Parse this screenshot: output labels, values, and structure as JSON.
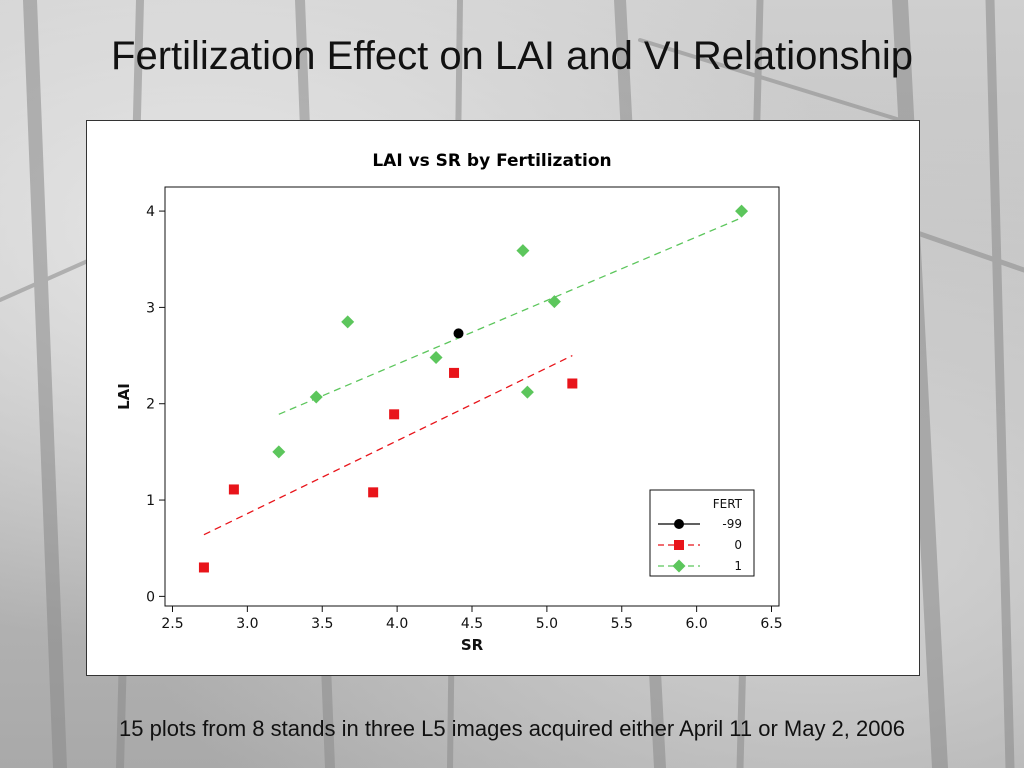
{
  "slide": {
    "title": "Fertilization Effect on LAI and VI Relationship",
    "caption": "15 plots from 8 stands in three L5 images acquired either April 11 or May 2, 2006"
  },
  "chart_data": {
    "type": "scatter",
    "title": "LAI vs SR by Fertilization",
    "xlabel": "SR",
    "ylabel": "LAI",
    "xlim": [
      2.45,
      6.55
    ],
    "ylim": [
      -0.1,
      4.25
    ],
    "xticks": [
      "2.5",
      "3.0",
      "3.5",
      "4.0",
      "4.5",
      "5.0",
      "5.5",
      "6.0",
      "6.5"
    ],
    "yticks": [
      "0",
      "1",
      "2",
      "3",
      "4"
    ],
    "grid": false,
    "legend": {
      "title": "FERT",
      "position": "bottom-right"
    },
    "series": [
      {
        "name": "-99",
        "color": "#000000",
        "marker": "circle",
        "points": [
          [
            4.41,
            2.73
          ]
        ],
        "fit": null
      },
      {
        "name": "0",
        "color": "#e8141a",
        "marker": "square",
        "points": [
          [
            2.71,
            0.3
          ],
          [
            2.91,
            1.11
          ],
          [
            3.84,
            1.08
          ],
          [
            3.98,
            1.89
          ],
          [
            4.38,
            2.32
          ],
          [
            5.17,
            2.21
          ]
        ],
        "fit": [
          [
            2.71,
            0.64
          ],
          [
            5.17,
            2.5
          ]
        ]
      },
      {
        "name": "1",
        "color": "#5cc65c",
        "marker": "diamond",
        "points": [
          [
            3.21,
            1.5
          ],
          [
            3.46,
            2.07
          ],
          [
            3.67,
            2.85
          ],
          [
            4.26,
            2.48
          ],
          [
            4.84,
            3.59
          ],
          [
            4.87,
            2.12
          ],
          [
            5.05,
            3.06
          ],
          [
            6.3,
            4.0
          ]
        ],
        "fit": [
          [
            3.21,
            1.89
          ],
          [
            6.3,
            3.93
          ]
        ]
      }
    ]
  }
}
